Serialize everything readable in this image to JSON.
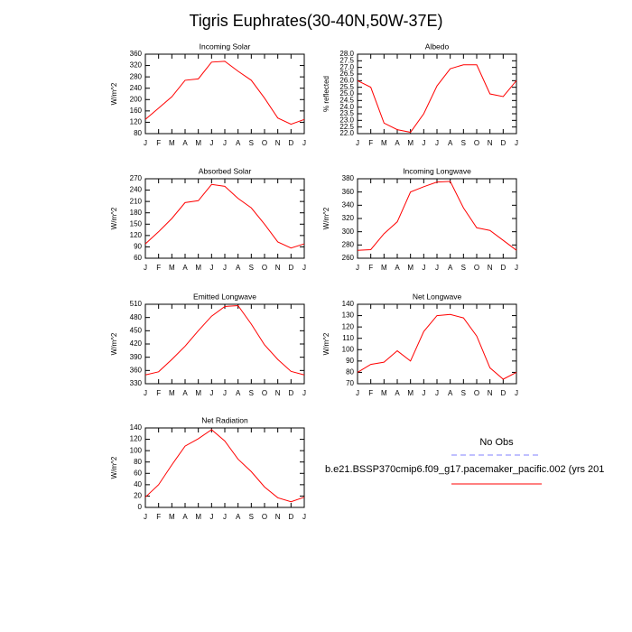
{
  "title": "Tigris Euphrates(30-40N,50W-37E)",
  "legend": [
    {
      "name": "No Obs",
      "color": "#8080ff"
    },
    {
      "name": "b.e21.BSSP370cmip6.f09_g17.pacemaker_pacific.002 (yrs 201",
      "color": "#ff0000"
    }
  ],
  "chart_data": [
    {
      "type": "line",
      "title": "Incoming Solar",
      "y_label": "W/m^2",
      "categories": [
        "J",
        "F",
        "M",
        "A",
        "M",
        "J",
        "J",
        "A",
        "S",
        "O",
        "N",
        "D",
        "J"
      ],
      "values": [
        130,
        170,
        210,
        268,
        273,
        332,
        335,
        300,
        268,
        205,
        135,
        113,
        130
      ],
      "color": "#ff0000",
      "ylim": [
        80,
        360
      ],
      "yticks": [
        80,
        120,
        160,
        200,
        240,
        280,
        320,
        360
      ]
    },
    {
      "type": "line",
      "title": "Albedo",
      "y_label": "% reflected",
      "categories": [
        "J",
        "F",
        "M",
        "A",
        "M",
        "J",
        "J",
        "A",
        "S",
        "O",
        "N",
        "D",
        "J"
      ],
      "values": [
        26.0,
        25.5,
        22.8,
        22.3,
        22.1,
        23.5,
        25.6,
        26.9,
        27.2,
        27.2,
        25.0,
        24.8,
        26.0
      ],
      "color": "#ff0000",
      "ylim": [
        22,
        28
      ],
      "yticks": [
        {
          "value": 22,
          "label": "22.0"
        },
        {
          "value": 22.5,
          "label": "22.5"
        },
        {
          "value": 23,
          "label": "23.0"
        },
        {
          "value": 23.5,
          "label": "23.5"
        },
        {
          "value": 24,
          "label": "24.0"
        },
        {
          "value": 24.5,
          "label": "24.5"
        },
        {
          "value": 25,
          "label": "25.0"
        },
        {
          "value": 25.5,
          "label": "25.5"
        },
        {
          "value": 26,
          "label": "26.0"
        },
        {
          "value": 26.5,
          "label": "26.5"
        },
        {
          "value": 27,
          "label": "27.0"
        },
        {
          "value": 27.5,
          "label": "27.5"
        },
        {
          "value": 28,
          "label": "28.0"
        }
      ]
    },
    {
      "type": "line",
      "title": "Absorbed Solar",
      "y_label": "W/m^2",
      "categories": [
        "J",
        "F",
        "M",
        "A",
        "M",
        "J",
        "J",
        "A",
        "S",
        "O",
        "N",
        "D",
        "J"
      ],
      "values": [
        98,
        130,
        165,
        207,
        212,
        255,
        250,
        218,
        193,
        150,
        103,
        87,
        98
      ],
      "color": "#ff0000",
      "ylim": [
        60,
        270
      ],
      "yticks": [
        60,
        90,
        120,
        150,
        180,
        210,
        240,
        270
      ]
    },
    {
      "type": "line",
      "title": "Incoming Longwave",
      "y_label": "W/m^2",
      "categories": [
        "J",
        "F",
        "M",
        "A",
        "M",
        "J",
        "J",
        "A",
        "S",
        "O",
        "N",
        "D",
        "J"
      ],
      "values": [
        272,
        273,
        297,
        315,
        360,
        368,
        375,
        376,
        336,
        306,
        302,
        287,
        272
      ],
      "color": "#ff0000",
      "ylim": [
        260,
        380
      ],
      "yticks": [
        260,
        280,
        300,
        320,
        340,
        360,
        380
      ]
    },
    {
      "type": "line",
      "title": "Emitted Longwave",
      "y_label": "W/m^2",
      "categories": [
        "J",
        "F",
        "M",
        "A",
        "M",
        "J",
        "J",
        "A",
        "S",
        "O",
        "N",
        "D",
        "J"
      ],
      "values": [
        350,
        357,
        385,
        415,
        450,
        483,
        505,
        507,
        465,
        418,
        385,
        358,
        350
      ],
      "color": "#ff0000",
      "ylim": [
        330,
        510
      ],
      "yticks": [
        330,
        360,
        390,
        420,
        450,
        480,
        510
      ]
    },
    {
      "type": "line",
      "title": "Net Longwave",
      "y_label": "W/m^2",
      "categories": [
        "J",
        "F",
        "M",
        "A",
        "M",
        "J",
        "J",
        "A",
        "S",
        "O",
        "N",
        "D",
        "J"
      ],
      "values": [
        80,
        87,
        89,
        99,
        90,
        116,
        130,
        131,
        128,
        112,
        84,
        74,
        80
      ],
      "color": "#ff0000",
      "ylim": [
        70,
        140
      ],
      "yticks": [
        70,
        80,
        90,
        100,
        110,
        120,
        130,
        140
      ]
    },
    {
      "type": "line",
      "title": "Net Radiation",
      "y_label": "W/m^2",
      "categories": [
        "J",
        "F",
        "M",
        "A",
        "M",
        "J",
        "J",
        "A",
        "S",
        "O",
        "N",
        "D",
        "J"
      ],
      "values": [
        18,
        40,
        75,
        108,
        121,
        137,
        117,
        85,
        63,
        36,
        17,
        10,
        18
      ],
      "color": "#ff0000",
      "ylim": [
        0,
        140
      ],
      "yticks": [
        0,
        20,
        40,
        60,
        80,
        100,
        120,
        140
      ]
    }
  ]
}
